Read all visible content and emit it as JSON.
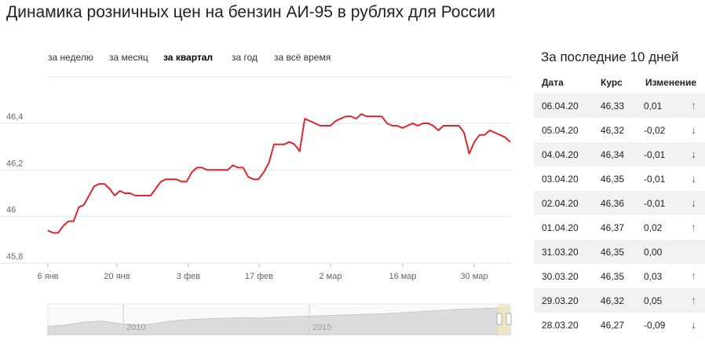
{
  "title": "Динамика розничных цен на бензин АИ-95 в рублях для России",
  "period_tabs": [
    {
      "label": "за неделю",
      "active": false
    },
    {
      "label": "за месяц",
      "active": false
    },
    {
      "label": "за квартал",
      "active": true
    },
    {
      "label": "за год",
      "active": false
    },
    {
      "label": "за всё время",
      "active": false
    }
  ],
  "chart_data": {
    "type": "line",
    "x_tick_labels": [
      "6 янв",
      "20 янв",
      "3 фев",
      "17 фев",
      "2 мар",
      "16 мар",
      "30 мар"
    ],
    "y_tick_labels": [
      "45,8",
      "46",
      "46,2",
      "46,4"
    ],
    "ylim": [
      45.8,
      46.45
    ],
    "xlim": [
      0,
      90
    ],
    "line_color": "#e0262c",
    "series": [
      {
        "x": [
          0,
          1,
          2,
          3,
          4,
          5,
          6,
          7,
          8,
          9,
          10,
          11,
          12,
          13,
          14,
          15,
          16,
          17,
          18,
          19,
          20,
          21,
          22,
          23,
          24,
          25,
          26,
          27,
          28,
          29,
          30,
          31,
          32,
          33,
          34,
          35,
          36,
          37,
          38,
          39,
          40,
          41,
          42,
          43,
          44,
          45,
          46,
          47,
          48,
          49,
          50,
          51,
          52,
          53,
          54,
          55,
          56,
          57,
          58,
          59,
          60,
          61,
          62,
          63,
          64,
          65,
          66,
          67,
          68,
          69,
          70,
          71,
          72,
          73,
          74,
          75,
          76,
          77,
          78,
          79,
          80,
          81,
          82,
          83,
          84,
          85,
          86,
          87,
          88,
          89,
          90
        ],
        "y": [
          45.94,
          45.93,
          45.93,
          45.96,
          45.98,
          45.98,
          46.04,
          46.05,
          46.09,
          46.13,
          46.14,
          46.14,
          46.12,
          46.09,
          46.11,
          46.1,
          46.1,
          46.09,
          46.09,
          46.09,
          46.09,
          46.12,
          46.15,
          46.16,
          46.16,
          46.16,
          46.15,
          46.15,
          46.19,
          46.21,
          46.21,
          46.2,
          46.2,
          46.2,
          46.2,
          46.2,
          46.22,
          46.21,
          46.21,
          46.17,
          46.16,
          46.16,
          46.19,
          46.23,
          46.31,
          46.31,
          46.31,
          46.32,
          46.31,
          46.28,
          46.42,
          46.41,
          46.4,
          46.39,
          46.39,
          46.39,
          46.41,
          46.42,
          46.43,
          46.43,
          46.42,
          46.44,
          46.43,
          46.43,
          46.43,
          46.43,
          46.4,
          46.39,
          46.39,
          46.38,
          46.39,
          46.4,
          46.39,
          46.4,
          46.4,
          46.39,
          46.37,
          46.39,
          46.39,
          46.39,
          46.39,
          46.36,
          46.27,
          46.32,
          46.35,
          46.35,
          46.37,
          46.36,
          46.35,
          46.34,
          46.32
        ]
      }
    ],
    "navigator": {
      "labels": [
        "2010",
        "2015"
      ],
      "area_values": [
        0.3,
        0.35,
        0.45,
        0.5,
        0.4,
        0.35,
        0.4,
        0.5,
        0.55,
        0.58,
        0.6,
        0.62,
        0.6,
        0.64,
        0.66,
        0.68,
        0.7,
        0.72,
        0.74,
        0.76,
        0.8,
        0.84,
        0.88,
        0.92,
        0.94,
        0.97,
        1.0
      ]
    }
  },
  "table": {
    "title": "За последние 10 дней",
    "headers": {
      "date": "Дата",
      "rate": "Курс",
      "change": "Изменение"
    },
    "rows": [
      {
        "date": "06.04.20",
        "rate": "46,33",
        "change": "0,01",
        "arrow": "↑",
        "dir": "up"
      },
      {
        "date": "05.04.20",
        "rate": "46,32",
        "change": "-0,02",
        "arrow": "↓",
        "dir": "down"
      },
      {
        "date": "04.04.20",
        "rate": "46,34",
        "change": "-0,01",
        "arrow": "↓",
        "dir": "down"
      },
      {
        "date": "03.04.20",
        "rate": "46,35",
        "change": "-0,01",
        "arrow": "↓",
        "dir": "down"
      },
      {
        "date": "02.04.20",
        "rate": "46,36",
        "change": "-0,01",
        "arrow": "↓",
        "dir": "down"
      },
      {
        "date": "01.04.20",
        "rate": "46,37",
        "change": "0,02",
        "arrow": "↑",
        "dir": "up"
      },
      {
        "date": "31.03.20",
        "rate": "46,35",
        "change": "0,00",
        "arrow": "",
        "dir": "none"
      },
      {
        "date": "30.03.20",
        "rate": "46,35",
        "change": "0,03",
        "arrow": "↑",
        "dir": "up"
      },
      {
        "date": "29.03.20",
        "rate": "46,32",
        "change": "0,05",
        "arrow": "↑",
        "dir": "up"
      },
      {
        "date": "28.03.20",
        "rate": "46,27",
        "change": "-0,09",
        "arrow": "↓",
        "dir": "down"
      }
    ]
  }
}
